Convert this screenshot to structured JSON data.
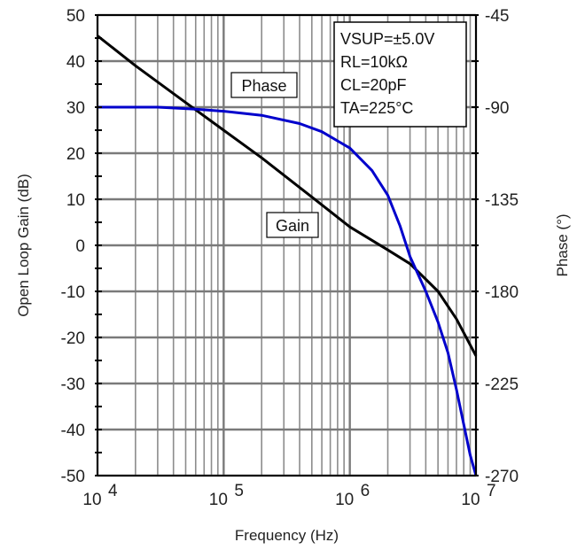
{
  "chart_data": {
    "type": "line",
    "title": "",
    "xlabel": "Frequency (Hz)",
    "ylabel": "Open Loop Gain (dB)",
    "ylabel_right": "Phase (°)",
    "x_scale": "log",
    "xlim": [
      10000,
      10000000
    ],
    "ylim": [
      -50,
      50
    ],
    "ylim_right": [
      -270,
      -45
    ],
    "grid": true,
    "x_ticks": [
      {
        "value": 10000,
        "base": "10",
        "exp": "4"
      },
      {
        "value": 100000,
        "base": "10",
        "exp": "5"
      },
      {
        "value": 1000000,
        "base": "10",
        "exp": "6"
      },
      {
        "value": 10000000,
        "base": "10",
        "exp": "7"
      }
    ],
    "y_ticks": [
      "50",
      "40",
      "30",
      "20",
      "10",
      "0",
      "-10",
      "-20",
      "-30",
      "-40",
      "-50"
    ],
    "y_ticks_right": [
      "-45",
      "-90",
      "-135",
      "-180",
      "-225",
      "-270"
    ],
    "series": [
      {
        "name": "Gain",
        "axis": "left",
        "color": "#000000",
        "x": [
          10000,
          20000,
          50000,
          100000,
          200000,
          500000,
          1000000,
          2000000,
          3000000,
          5000000,
          7000000,
          10000000
        ],
        "y": [
          45.5,
          39,
          31,
          25,
          19,
          10.5,
          4,
          -1,
          -4,
          -10,
          -16,
          -24
        ]
      },
      {
        "name": "Phase",
        "axis": "right",
        "color": "#0000cc",
        "x": [
          10000,
          30000,
          60000,
          100000,
          200000,
          400000,
          600000,
          1000000,
          1500000,
          2000000,
          2500000,
          3000000,
          4000000,
          5000000,
          6000000,
          7000000,
          8000000,
          9000000,
          10000000
        ],
        "y": [
          -90,
          -90,
          -91,
          -92,
          -94,
          -98,
          -102,
          -110,
          -121,
          -133,
          -148,
          -163,
          -180,
          -195,
          -210,
          -228,
          -245,
          -260,
          -270
        ]
      }
    ],
    "annotations": [
      {
        "text": "Phase"
      },
      {
        "text": "Gain"
      }
    ],
    "conditions": [
      "VSUP=±5.0V",
      "RL=10kΩ",
      "CL=20pF",
      "TA=225°C"
    ]
  }
}
